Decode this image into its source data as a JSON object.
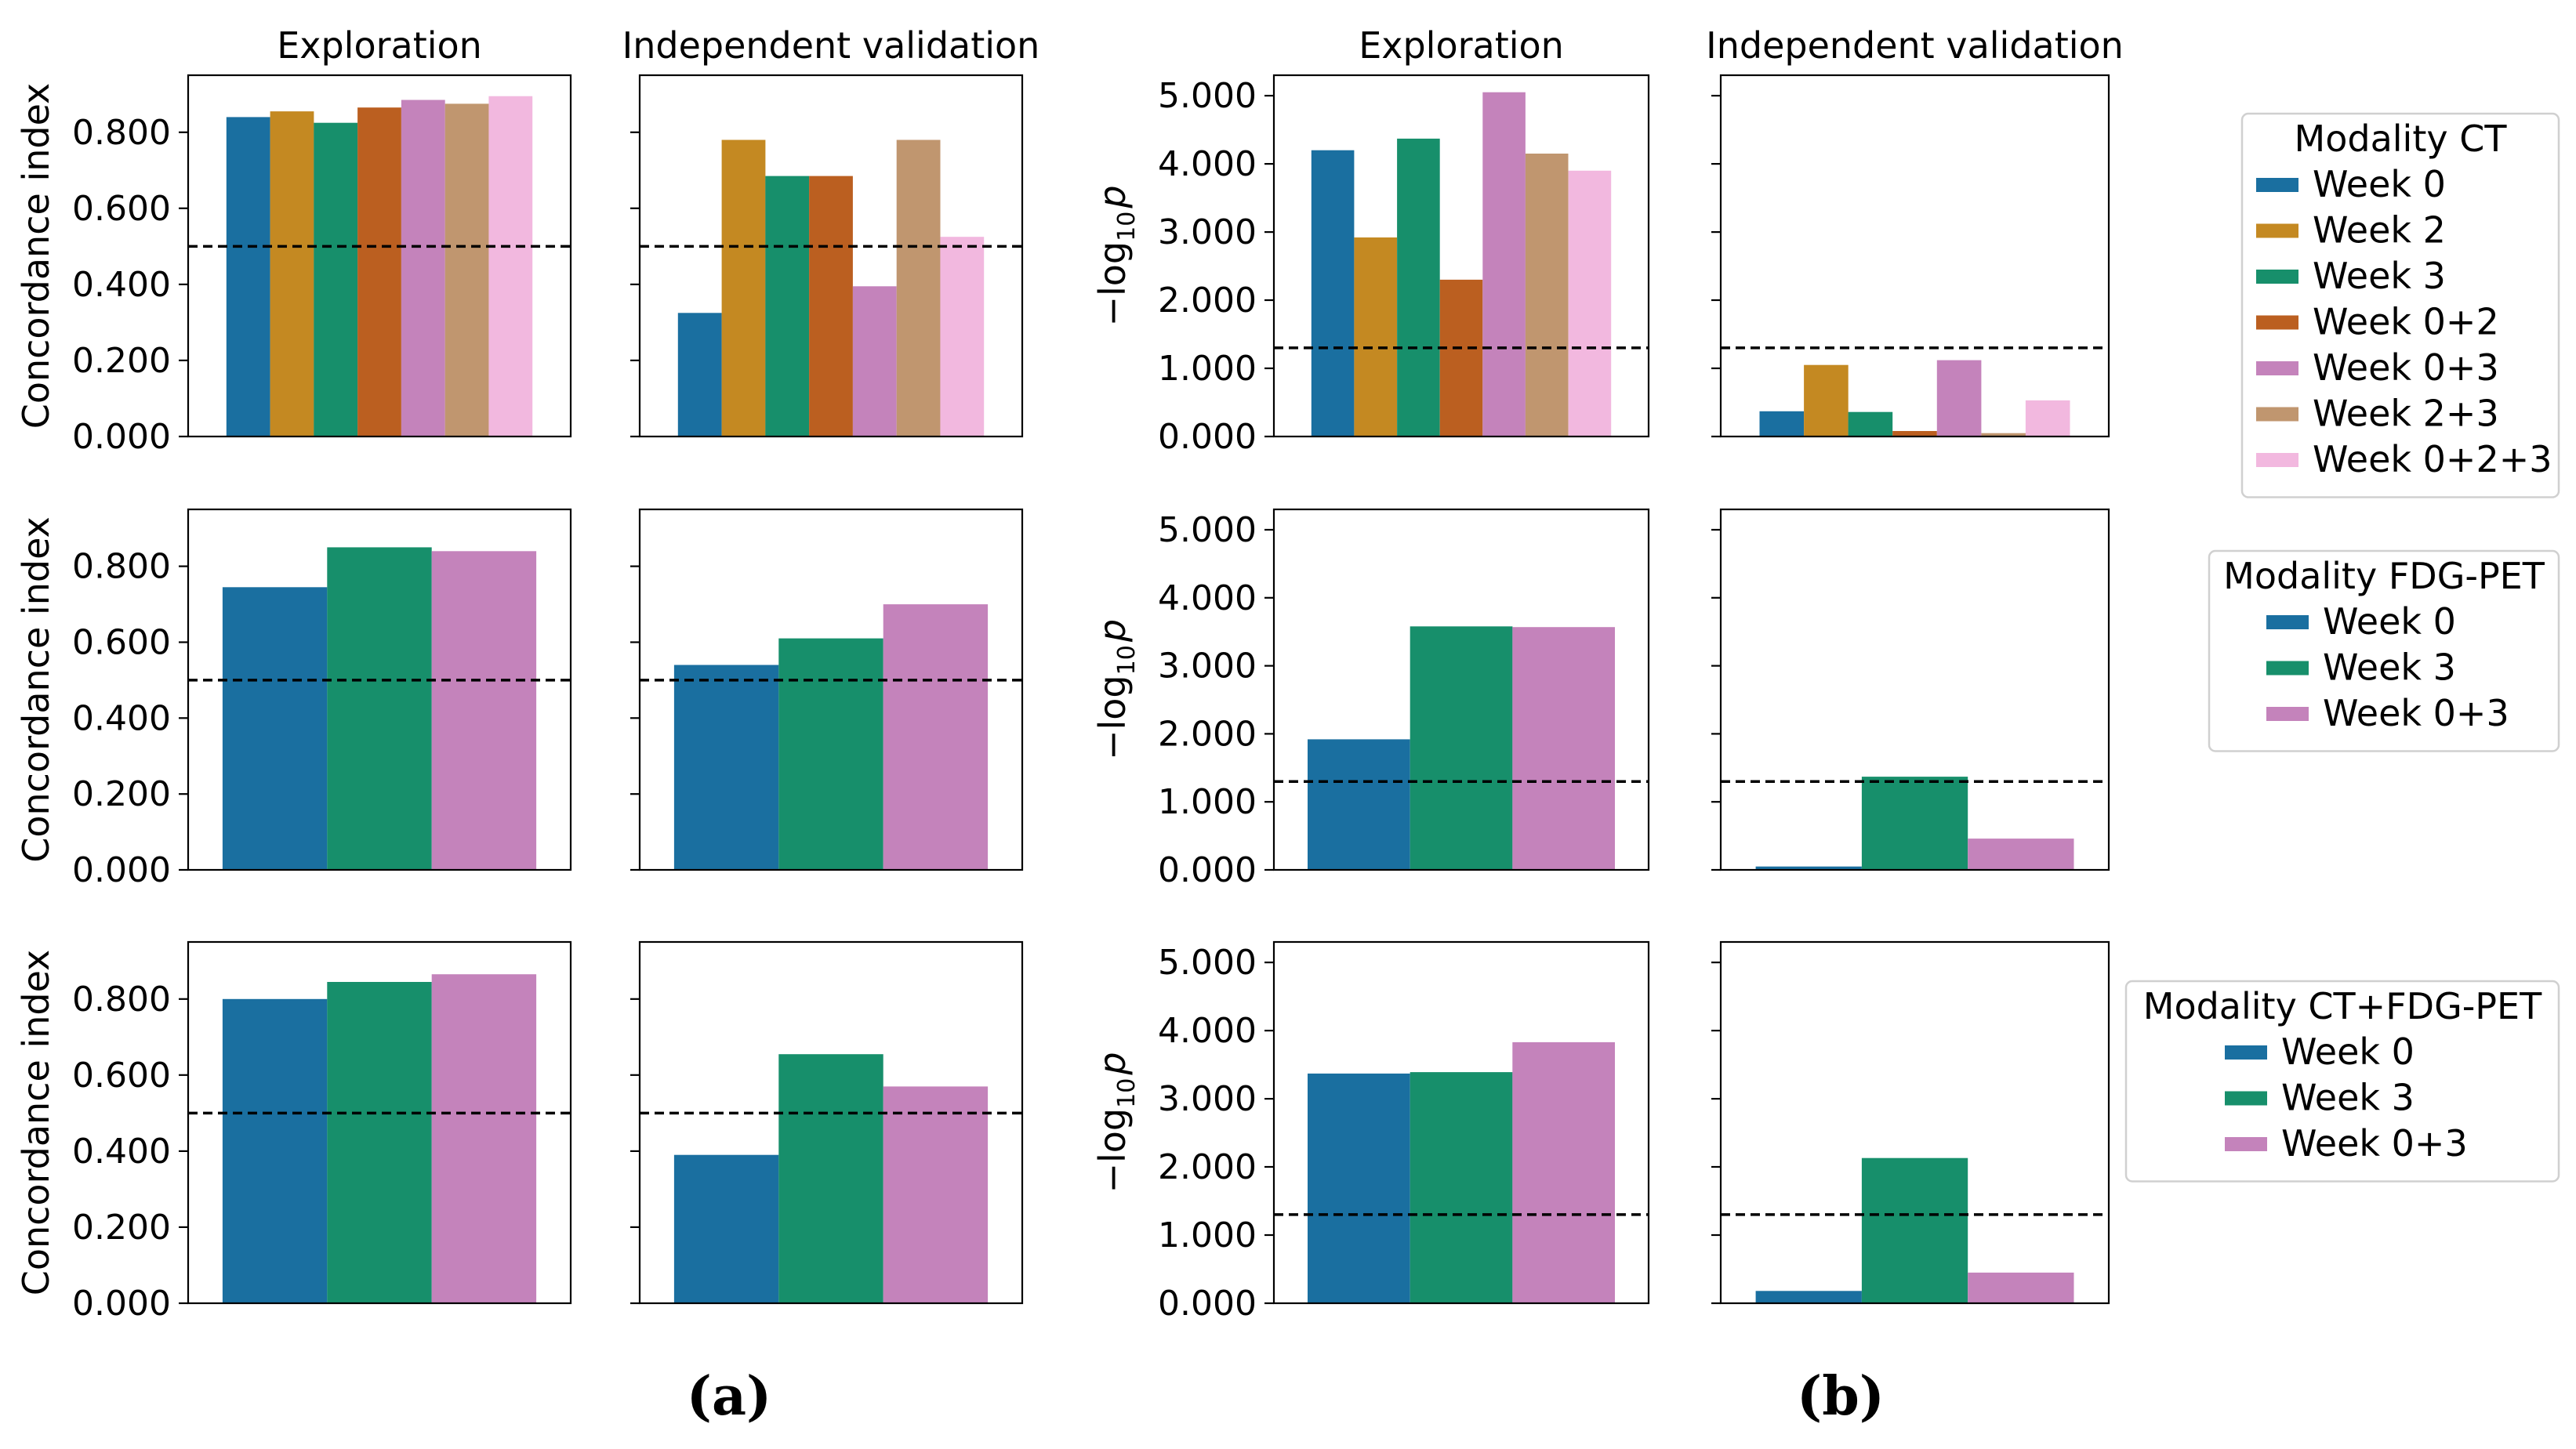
{
  "colors": {
    "Week 0": "#1a6fa0",
    "Week 2": "#c48922",
    "Week 3": "#178f6b",
    "Week 0+2": "#bb5f20",
    "Week 0+3": "#c483bb",
    "Week 2+3": "#c0966f",
    "Week 0+2+3": "#f2b8df"
  },
  "panel_labels": [
    "(a)",
    "(b)"
  ],
  "column_titles": [
    "Exploration",
    "Independent validation",
    "Exploration",
    "Independent validation"
  ],
  "ylabels": {
    "cindex": "Concordance index",
    "logp_prefix": "−log",
    "logp_sub": "10",
    "logp_var": "p"
  },
  "legends": [
    {
      "title": "Modality CT",
      "entries": [
        "Week 0",
        "Week 2",
        "Week 3",
        "Week 0+2",
        "Week 0+3",
        "Week 2+3",
        "Week 0+2+3"
      ]
    },
    {
      "title": "Modality FDG-PET",
      "entries": [
        "Week 0",
        "Week 3",
        "Week 0+3"
      ]
    },
    {
      "title": "Modality CT+FDG-PET",
      "entries": [
        "Week 0",
        "Week 3",
        "Week 0+3"
      ]
    }
  ],
  "chart_data": [
    {
      "type": "bar",
      "row": 0,
      "col": 0,
      "modality": "CT",
      "metric": "Concordance index",
      "title": "Exploration",
      "ylabel": "Concordance index",
      "ylim": [
        0,
        0.95
      ],
      "yticks": [
        "0.000",
        "0.200",
        "0.400",
        "0.600",
        "0.800"
      ],
      "reference_line": 0.5,
      "categories": [
        "Week 0",
        "Week 2",
        "Week 3",
        "Week 0+2",
        "Week 0+3",
        "Week 2+3",
        "Week 0+2+3"
      ],
      "values": [
        0.84,
        0.855,
        0.825,
        0.865,
        0.885,
        0.875,
        0.895
      ]
    },
    {
      "type": "bar",
      "row": 0,
      "col": 1,
      "modality": "CT",
      "metric": "Concordance index",
      "title": "Independent validation",
      "ylabel": "",
      "ylim": [
        0,
        0.95
      ],
      "yticks": [],
      "reference_line": 0.5,
      "categories": [
        "Week 0",
        "Week 2",
        "Week 3",
        "Week 0+2",
        "Week 0+3",
        "Week 2+3",
        "Week 0+2+3"
      ],
      "values": [
        0.325,
        0.78,
        0.685,
        0.685,
        0.395,
        0.78,
        0.525
      ]
    },
    {
      "type": "bar",
      "row": 0,
      "col": 2,
      "modality": "CT",
      "metric": "-log10 p",
      "title": "Exploration",
      "ylabel": "-log10 p",
      "ylim": [
        0,
        5.3
      ],
      "yticks": [
        "0.000",
        "1.000",
        "2.000",
        "3.000",
        "4.000",
        "5.000"
      ],
      "reference_line": 1.3,
      "categories": [
        "Week 0",
        "Week 2",
        "Week 3",
        "Week 0+2",
        "Week 0+3",
        "Week 2+3",
        "Week 0+2+3"
      ],
      "values": [
        4.2,
        2.92,
        4.37,
        2.3,
        5.05,
        4.15,
        3.9
      ]
    },
    {
      "type": "bar",
      "row": 0,
      "col": 3,
      "modality": "CT",
      "metric": "-log10 p",
      "title": "Independent validation",
      "ylabel": "",
      "ylim": [
        0,
        5.3
      ],
      "yticks": [],
      "reference_line": 1.3,
      "categories": [
        "Week 0",
        "Week 2",
        "Week 3",
        "Week 0+2",
        "Week 0+3",
        "Week 2+3",
        "Week 0+2+3"
      ],
      "values": [
        0.37,
        1.05,
        0.36,
        0.08,
        1.12,
        0.05,
        0.53
      ]
    },
    {
      "type": "bar",
      "row": 1,
      "col": 0,
      "modality": "FDG-PET",
      "metric": "Concordance index",
      "title": "",
      "ylabel": "Concordance index",
      "ylim": [
        0,
        0.95
      ],
      "yticks": [
        "0.000",
        "0.200",
        "0.400",
        "0.600",
        "0.800"
      ],
      "reference_line": 0.5,
      "categories": [
        "Week 0",
        "Week 3",
        "Week 0+3"
      ],
      "values": [
        0.745,
        0.85,
        0.84
      ]
    },
    {
      "type": "bar",
      "row": 1,
      "col": 1,
      "modality": "FDG-PET",
      "metric": "Concordance index",
      "title": "",
      "ylabel": "",
      "ylim": [
        0,
        0.95
      ],
      "yticks": [],
      "reference_line": 0.5,
      "categories": [
        "Week 0",
        "Week 3",
        "Week 0+3"
      ],
      "values": [
        0.54,
        0.61,
        0.7
      ]
    },
    {
      "type": "bar",
      "row": 1,
      "col": 2,
      "modality": "FDG-PET",
      "metric": "-log10 p",
      "title": "",
      "ylabel": "-log10 p",
      "ylim": [
        0,
        5.3
      ],
      "yticks": [
        "0.000",
        "1.000",
        "2.000",
        "3.000",
        "4.000",
        "5.000"
      ],
      "reference_line": 1.3,
      "categories": [
        "Week 0",
        "Week 3",
        "Week 0+3"
      ],
      "values": [
        1.92,
        3.58,
        3.57
      ]
    },
    {
      "type": "bar",
      "row": 1,
      "col": 3,
      "modality": "FDG-PET",
      "metric": "-log10 p",
      "title": "",
      "ylabel": "",
      "ylim": [
        0,
        5.3
      ],
      "yticks": [],
      "reference_line": 1.3,
      "categories": [
        "Week 0",
        "Week 3",
        "Week 0+3"
      ],
      "values": [
        0.05,
        1.37,
        0.46
      ]
    },
    {
      "type": "bar",
      "row": 2,
      "col": 0,
      "modality": "CT+FDG-PET",
      "metric": "Concordance index",
      "title": "",
      "ylabel": "Concordance index",
      "ylim": [
        0,
        0.95
      ],
      "yticks": [
        "0.000",
        "0.200",
        "0.400",
        "0.600",
        "0.800"
      ],
      "reference_line": 0.5,
      "categories": [
        "Week 0",
        "Week 3",
        "Week 0+3"
      ],
      "values": [
        0.8,
        0.845,
        0.865
      ]
    },
    {
      "type": "bar",
      "row": 2,
      "col": 1,
      "modality": "CT+FDG-PET",
      "metric": "Concordance index",
      "title": "",
      "ylabel": "",
      "ylim": [
        0,
        0.95
      ],
      "yticks": [],
      "reference_line": 0.5,
      "categories": [
        "Week 0",
        "Week 3",
        "Week 0+3"
      ],
      "values": [
        0.39,
        0.655,
        0.57
      ]
    },
    {
      "type": "bar",
      "row": 2,
      "col": 2,
      "modality": "CT+FDG-PET",
      "metric": "-log10 p",
      "title": "",
      "ylabel": "-log10 p",
      "ylim": [
        0,
        5.3
      ],
      "yticks": [
        "0.000",
        "1.000",
        "2.000",
        "3.000",
        "4.000",
        "5.000"
      ],
      "reference_line": 1.3,
      "categories": [
        "Week 0",
        "Week 3",
        "Week 0+3"
      ],
      "values": [
        3.37,
        3.39,
        3.83
      ]
    },
    {
      "type": "bar",
      "row": 2,
      "col": 3,
      "modality": "CT+FDG-PET",
      "metric": "-log10 p",
      "title": "",
      "ylabel": "",
      "ylim": [
        0,
        5.3
      ],
      "yticks": [],
      "reference_line": 1.3,
      "categories": [
        "Week 0",
        "Week 3",
        "Week 0+3"
      ],
      "values": [
        0.18,
        2.13,
        0.45
      ]
    }
  ]
}
